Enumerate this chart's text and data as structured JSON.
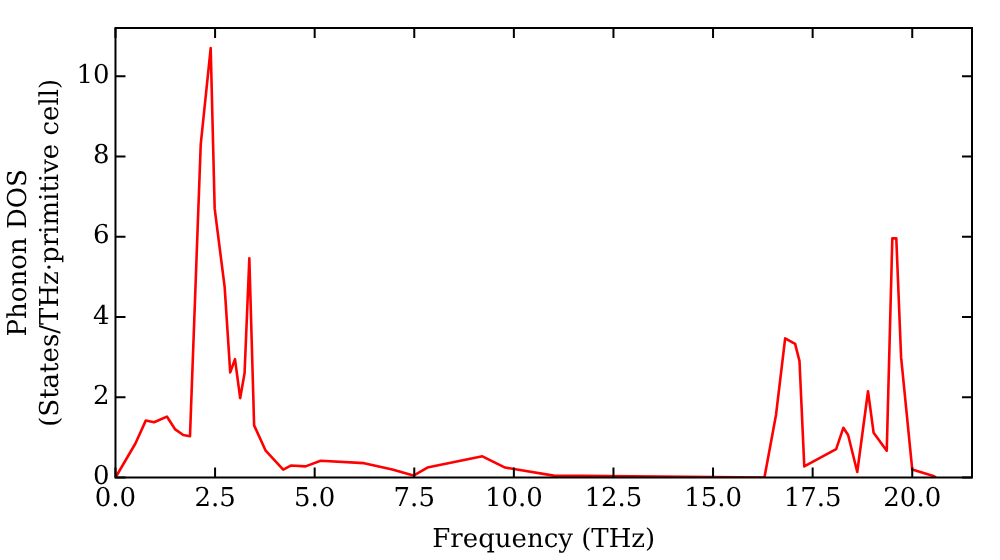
{
  "chart_data": {
    "type": "line",
    "xlabel": "Frequency (THz)",
    "ylabel": "Phonon DOS\n(States/THz·primitive cell)",
    "x": [
      0,
      0.5,
      0.76,
      0.97,
      1.29,
      1.5,
      1.7,
      1.87,
      2.14,
      2.39,
      2.49,
      2.74,
      2.88,
      3.0,
      3.13,
      3.24,
      3.36,
      3.48,
      3.77,
      4.21,
      4.4,
      4.77,
      5.15,
      6.24,
      6.95,
      7.48,
      7.83,
      9.21,
      9.78,
      11.0,
      16.29,
      16.58,
      16.81,
      17.06,
      17.17,
      17.29,
      18.09,
      18.27,
      18.39,
      18.62,
      18.89,
      19.03,
      19.36,
      19.5,
      19.6,
      19.72,
      20.0,
      20.53,
      20.6
    ],
    "series": [
      {
        "color": "#ff0000",
        "values": [
          0,
          0.85,
          1.42,
          1.38,
          1.52,
          1.2,
          1.06,
          1.03,
          8.3,
          10.7,
          6.7,
          4.75,
          2.62,
          2.95,
          1.98,
          2.6,
          5.46,
          1.3,
          0.67,
          0.2,
          0.3,
          0.28,
          0.42,
          0.36,
          0.2,
          0.05,
          0.25,
          0.53,
          0.25,
          0.05,
          0,
          1.56,
          3.47,
          3.33,
          2.9,
          0.28,
          0.71,
          1.24,
          1.06,
          0.14,
          2.15,
          1.12,
          0.67,
          5.96,
          5.96,
          3.0,
          0.2,
          0.04,
          0
        ]
      }
    ],
    "xlim": [
      0,
      21.5
    ],
    "ylim": [
      0,
      11.2
    ],
    "xticks": [
      {
        "value": 0,
        "label": "0.0"
      },
      {
        "value": 2.5,
        "label": "2.5"
      },
      {
        "value": 5,
        "label": "5.0"
      },
      {
        "value": 7.5,
        "label": "7.5"
      },
      {
        "value": 10,
        "label": "10.0"
      },
      {
        "value": 12.5,
        "label": "12.5"
      },
      {
        "value": 15,
        "label": "15.0"
      },
      {
        "value": 17.5,
        "label": "17.5"
      },
      {
        "value": 20,
        "label": "20.0"
      }
    ],
    "yticks": [
      0,
      2,
      4,
      6,
      8,
      10
    ],
    "grid": false,
    "legend": false,
    "marker": "none",
    "line_style": "solid"
  }
}
